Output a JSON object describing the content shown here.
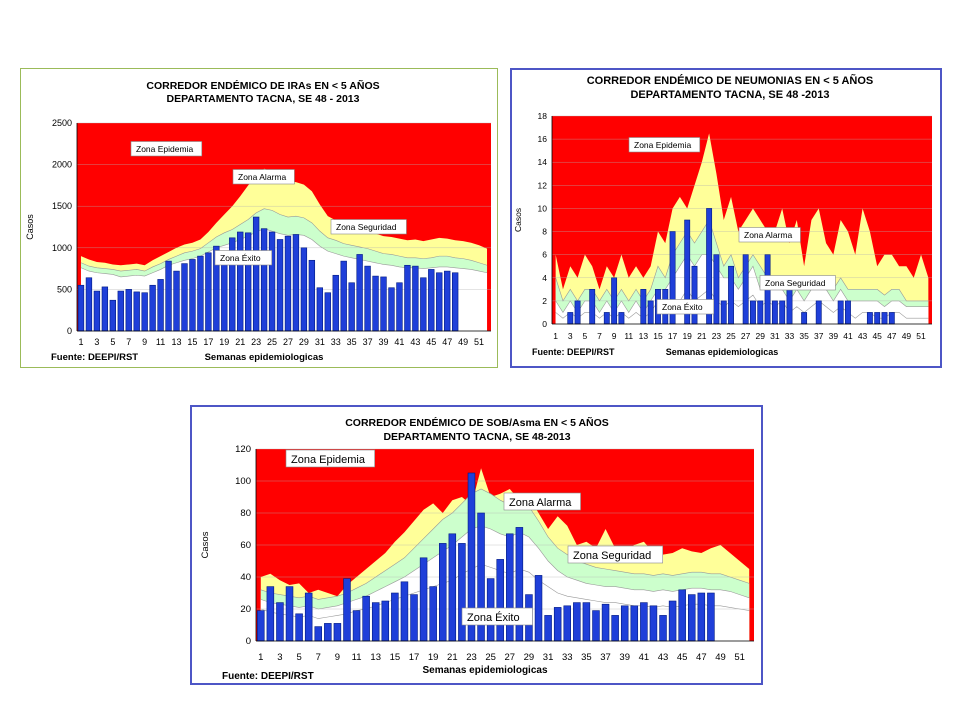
{
  "chart_data": [
    {
      "type": "bar",
      "title_line1": "CORREDOR ENDÉMICO DE IRAs EN < 5 AÑOS",
      "title_line2": "DEPARTAMENTO TACNA,  SE 48 - 2013",
      "ylabel": "Casos",
      "xlabel": "Semanas epidemiologicas",
      "source": "Fuente: DEEPI/RST",
      "ylim": [
        0,
        2500
      ],
      "yticks": [
        0,
        500,
        1000,
        1500,
        2000,
        2500
      ],
      "xticks": [
        "1",
        "3",
        "5",
        "7",
        "9",
        "11",
        "13",
        "15",
        "17",
        "19",
        "21",
        "23",
        "25",
        "27",
        "29",
        "31",
        "33",
        "35",
        "37",
        "39",
        "41",
        "43",
        "45",
        "47",
        "49",
        "51"
      ],
      "weeks": 52,
      "grid": true,
      "zone_labels": {
        "epidemia": "Zona Epidemia",
        "alarma": "Zona Alarma",
        "seguridad": "Zona Seguridad",
        "exito": "Zona Éxito"
      },
      "zones": {
        "exito": [
          760,
          720,
          700,
          690,
          680,
          650,
          660,
          670,
          660,
          700,
          740,
          790,
          820,
          850,
          870,
          900,
          950,
          1000,
          1030,
          1060,
          1100,
          1140,
          1190,
          1230,
          1200,
          1170,
          1150,
          1160,
          1150,
          1100,
          1020,
          960,
          930,
          900,
          880,
          860,
          840,
          820,
          800,
          790,
          770,
          760,
          760,
          750,
          760,
          770,
          770,
          760,
          750,
          740,
          720,
          700
        ],
        "seguridad": [
          820,
          780,
          760,
          750,
          740,
          720,
          730,
          740,
          720,
          770,
          810,
          860,
          900,
          940,
          960,
          990,
          1060,
          1130,
          1180,
          1220,
          1280,
          1340,
          1420,
          1470,
          1450,
          1400,
          1370,
          1380,
          1360,
          1300,
          1200,
          1120,
          1090,
          1050,
          1030,
          1010,
          990,
          960,
          930,
          920,
          900,
          880,
          880,
          870,
          880,
          900,
          900,
          880,
          870,
          850,
          820,
          790
        ],
        "alarma": [
          900,
          860,
          830,
          820,
          800,
          790,
          800,
          810,
          790,
          850,
          900,
          950,
          1000,
          1040,
          1060,
          1100,
          1190,
          1300,
          1400,
          1500,
          1620,
          1750,
          1860,
          1950,
          1920,
          1850,
          1800,
          1790,
          1760,
          1680,
          1520,
          1380,
          1330,
          1280,
          1250,
          1230,
          1200,
          1170,
          1140,
          1130,
          1110,
          1090,
          1100,
          1080,
          1100,
          1120,
          1110,
          1090,
          1080,
          1060,
          1030,
          990
        ],
        "epidemia": 2500
      },
      "values": [
        550,
        640,
        480,
        530,
        370,
        480,
        500,
        470,
        460,
        550,
        620,
        840,
        720,
        810,
        860,
        900,
        940,
        1020,
        900,
        1120,
        1190,
        1180,
        1370,
        1230,
        1190,
        1100,
        1140,
        1160,
        1000,
        850,
        520,
        460,
        670,
        840,
        580,
        920,
        780,
        660,
        650,
        520,
        580,
        790,
        780,
        640,
        740,
        700,
        720,
        700
      ]
    },
    {
      "type": "bar",
      "title_line1": "CORREDOR ENDÉMICO DE NEUMONIAS EN < 5 AÑOS",
      "title_line2": "DEPARTAMENTO TACNA,  SE 48 -2013",
      "ylabel": "Casos",
      "xlabel": "Semanas epidemiologicas",
      "source": "Fuente: DEEPI/RST",
      "ylim": [
        0,
        18
      ],
      "yticks": [
        0,
        2,
        4,
        6,
        8,
        10,
        12,
        14,
        16,
        18
      ],
      "xticks": [
        "1",
        "3",
        "5",
        "7",
        "9",
        "11",
        "13",
        "15",
        "17",
        "19",
        "21",
        "23",
        "25",
        "27",
        "29",
        "31",
        "33",
        "35",
        "37",
        "39",
        "41",
        "43",
        "45",
        "47",
        "49",
        "51"
      ],
      "weeks": 52,
      "grid": true,
      "zone_labels": {
        "epidemia": "Zona Epidemia",
        "alarma": "Zona Alarma",
        "seguridad": "Zona Seguridad",
        "exito": "Zona Éxito"
      },
      "zones": {
        "exito": [
          1,
          0.5,
          1,
          0.5,
          1,
          1,
          0.5,
          1,
          0.5,
          1,
          0.5,
          1,
          0.5,
          1,
          2,
          1,
          1.5,
          2,
          3,
          2,
          2.5,
          3,
          2,
          1.5,
          2,
          1.5,
          2,
          2.5,
          1.5,
          2,
          1.5,
          2,
          1,
          1.5,
          1,
          1.5,
          2,
          1.5,
          1,
          1.5,
          1,
          0.5,
          1,
          1,
          0.5,
          0.5,
          1,
          1,
          0.5,
          0.5,
          0.5,
          0.5
        ],
        "seguridad": [
          2,
          1,
          2,
          1,
          2,
          2,
          1,
          2,
          1,
          2,
          1,
          2,
          1,
          2,
          3,
          3,
          4,
          5,
          6,
          5,
          6,
          6,
          5,
          4,
          4,
          3,
          4,
          5,
          3,
          3,
          3,
          3,
          2,
          3,
          2,
          3,
          3,
          3,
          2,
          3,
          2,
          2,
          2,
          2,
          2,
          1.5,
          2,
          2,
          1.5,
          1.5,
          1.5,
          1.5
        ],
        "alarma": [
          4,
          2,
          3,
          2,
          3,
          3,
          2,
          3,
          2,
          3,
          2,
          3,
          2,
          3,
          5,
          4,
          6,
          7,
          8,
          7,
          8,
          9,
          7,
          5,
          6,
          4,
          5,
          6,
          5,
          4,
          4,
          4,
          3,
          4,
          3,
          4,
          4,
          4,
          3,
          4,
          3,
          3,
          3,
          3,
          3,
          2.5,
          3,
          3,
          2,
          2,
          2,
          2
        ],
        "epidemia": [
          6,
          3,
          5,
          4,
          6,
          5,
          3,
          5,
          4,
          6,
          4,
          5,
          4,
          5,
          8,
          7,
          10,
          11,
          10,
          12,
          14,
          16.5,
          13,
          9,
          11,
          8,
          9,
          10,
          9,
          8,
          8,
          10,
          7,
          9,
          5,
          9,
          10,
          7,
          6,
          9,
          8,
          6,
          10,
          8,
          5,
          6,
          6,
          5,
          5,
          4,
          6,
          4
        ]
      },
      "values": [
        0,
        0,
        1,
        2,
        0,
        3,
        0,
        1,
        4,
        1,
        0,
        0,
        3,
        2,
        3,
        3,
        8,
        0,
        9,
        5,
        0,
        10,
        6,
        2,
        5,
        0,
        6,
        2,
        2,
        6,
        2,
        2,
        4,
        0,
        1,
        0,
        2,
        0,
        0,
        2,
        2,
        0,
        0,
        1,
        1,
        1,
        1,
        0
      ]
    },
    {
      "type": "bar",
      "title_line1": "CORREDOR ENDÉMICO DE SOB/Asma EN < 5 AÑOS",
      "title_line2": "DEPARTAMENTO TACNA,  SE  48-2013",
      "ylabel": "Casos",
      "xlabel": "Semanas epidemiologicas",
      "source": "Fuente: DEEPI/RST",
      "ylim": [
        0,
        120
      ],
      "yticks": [
        0,
        20,
        40,
        60,
        80,
        100,
        120
      ],
      "xticks": [
        "1",
        "3",
        "5",
        "7",
        "9",
        "11",
        "13",
        "15",
        "17",
        "19",
        "21",
        "23",
        "25",
        "27",
        "29",
        "31",
        "33",
        "35",
        "37",
        "39",
        "41",
        "43",
        "45",
        "47",
        "49",
        "51"
      ],
      "weeks": 52,
      "grid": true,
      "zone_labels": {
        "epidemia": "Zona Epidemia",
        "alarma": "Zona Alarma",
        "seguridad": "Zona Seguridad",
        "exito": "Zona Éxito"
      },
      "zones": {
        "exito": [
          20,
          18,
          17,
          16,
          15,
          16,
          14,
          15,
          16,
          17,
          19,
          20,
          22,
          24,
          26,
          28,
          30,
          32,
          34,
          36,
          38,
          42,
          45,
          48,
          46,
          44,
          42,
          45,
          43,
          38,
          34,
          30,
          28,
          27,
          26,
          25,
          24,
          24,
          23,
          22,
          22,
          21,
          22,
          21,
          22,
          23,
          23,
          22,
          22,
          21,
          20,
          19
        ],
        "seguridad": [
          26,
          24,
          23,
          22,
          21,
          22,
          20,
          21,
          22,
          24,
          26,
          28,
          31,
          34,
          37,
          40,
          44,
          48,
          52,
          56,
          60,
          65,
          70,
          72,
          70,
          67,
          65,
          68,
          65,
          58,
          50,
          44,
          40,
          38,
          36,
          35,
          34,
          34,
          33,
          32,
          32,
          31,
          32,
          31,
          32,
          33,
          33,
          32,
          32,
          31,
          29,
          27
        ],
        "alarma": [
          32,
          30,
          29,
          28,
          27,
          28,
          26,
          27,
          28,
          30,
          33,
          36,
          40,
          44,
          48,
          52,
          58,
          64,
          70,
          76,
          80,
          86,
          92,
          95,
          92,
          88,
          85,
          88,
          84,
          75,
          65,
          58,
          54,
          50,
          48,
          46,
          45,
          44,
          43,
          42,
          42,
          41,
          42,
          41,
          42,
          43,
          43,
          42,
          42,
          40,
          38,
          36
        ],
        "epidemia": [
          40,
          42,
          38,
          35,
          36,
          30,
          32,
          30,
          28,
          35,
          40,
          45,
          50,
          55,
          62,
          68,
          75,
          82,
          86,
          80,
          88,
          90,
          85,
          108,
          90,
          92,
          95,
          88,
          90,
          80,
          70,
          78,
          72,
          60,
          62,
          58,
          70,
          58,
          56,
          60,
          62,
          55,
          54,
          55,
          58,
          56,
          55,
          58,
          60,
          55,
          50,
          45
        ]
      },
      "values": [
        19,
        34,
        24,
        34,
        17,
        30,
        9,
        11,
        11,
        39,
        19,
        28,
        24,
        25,
        30,
        37,
        29,
        52,
        34,
        61,
        67,
        61,
        105,
        80,
        39,
        51,
        67,
        71,
        29,
        41,
        16,
        21,
        22,
        24,
        24,
        19,
        23,
        16,
        22,
        22,
        24,
        22,
        16,
        25,
        32,
        29,
        30,
        30
      ]
    }
  ]
}
